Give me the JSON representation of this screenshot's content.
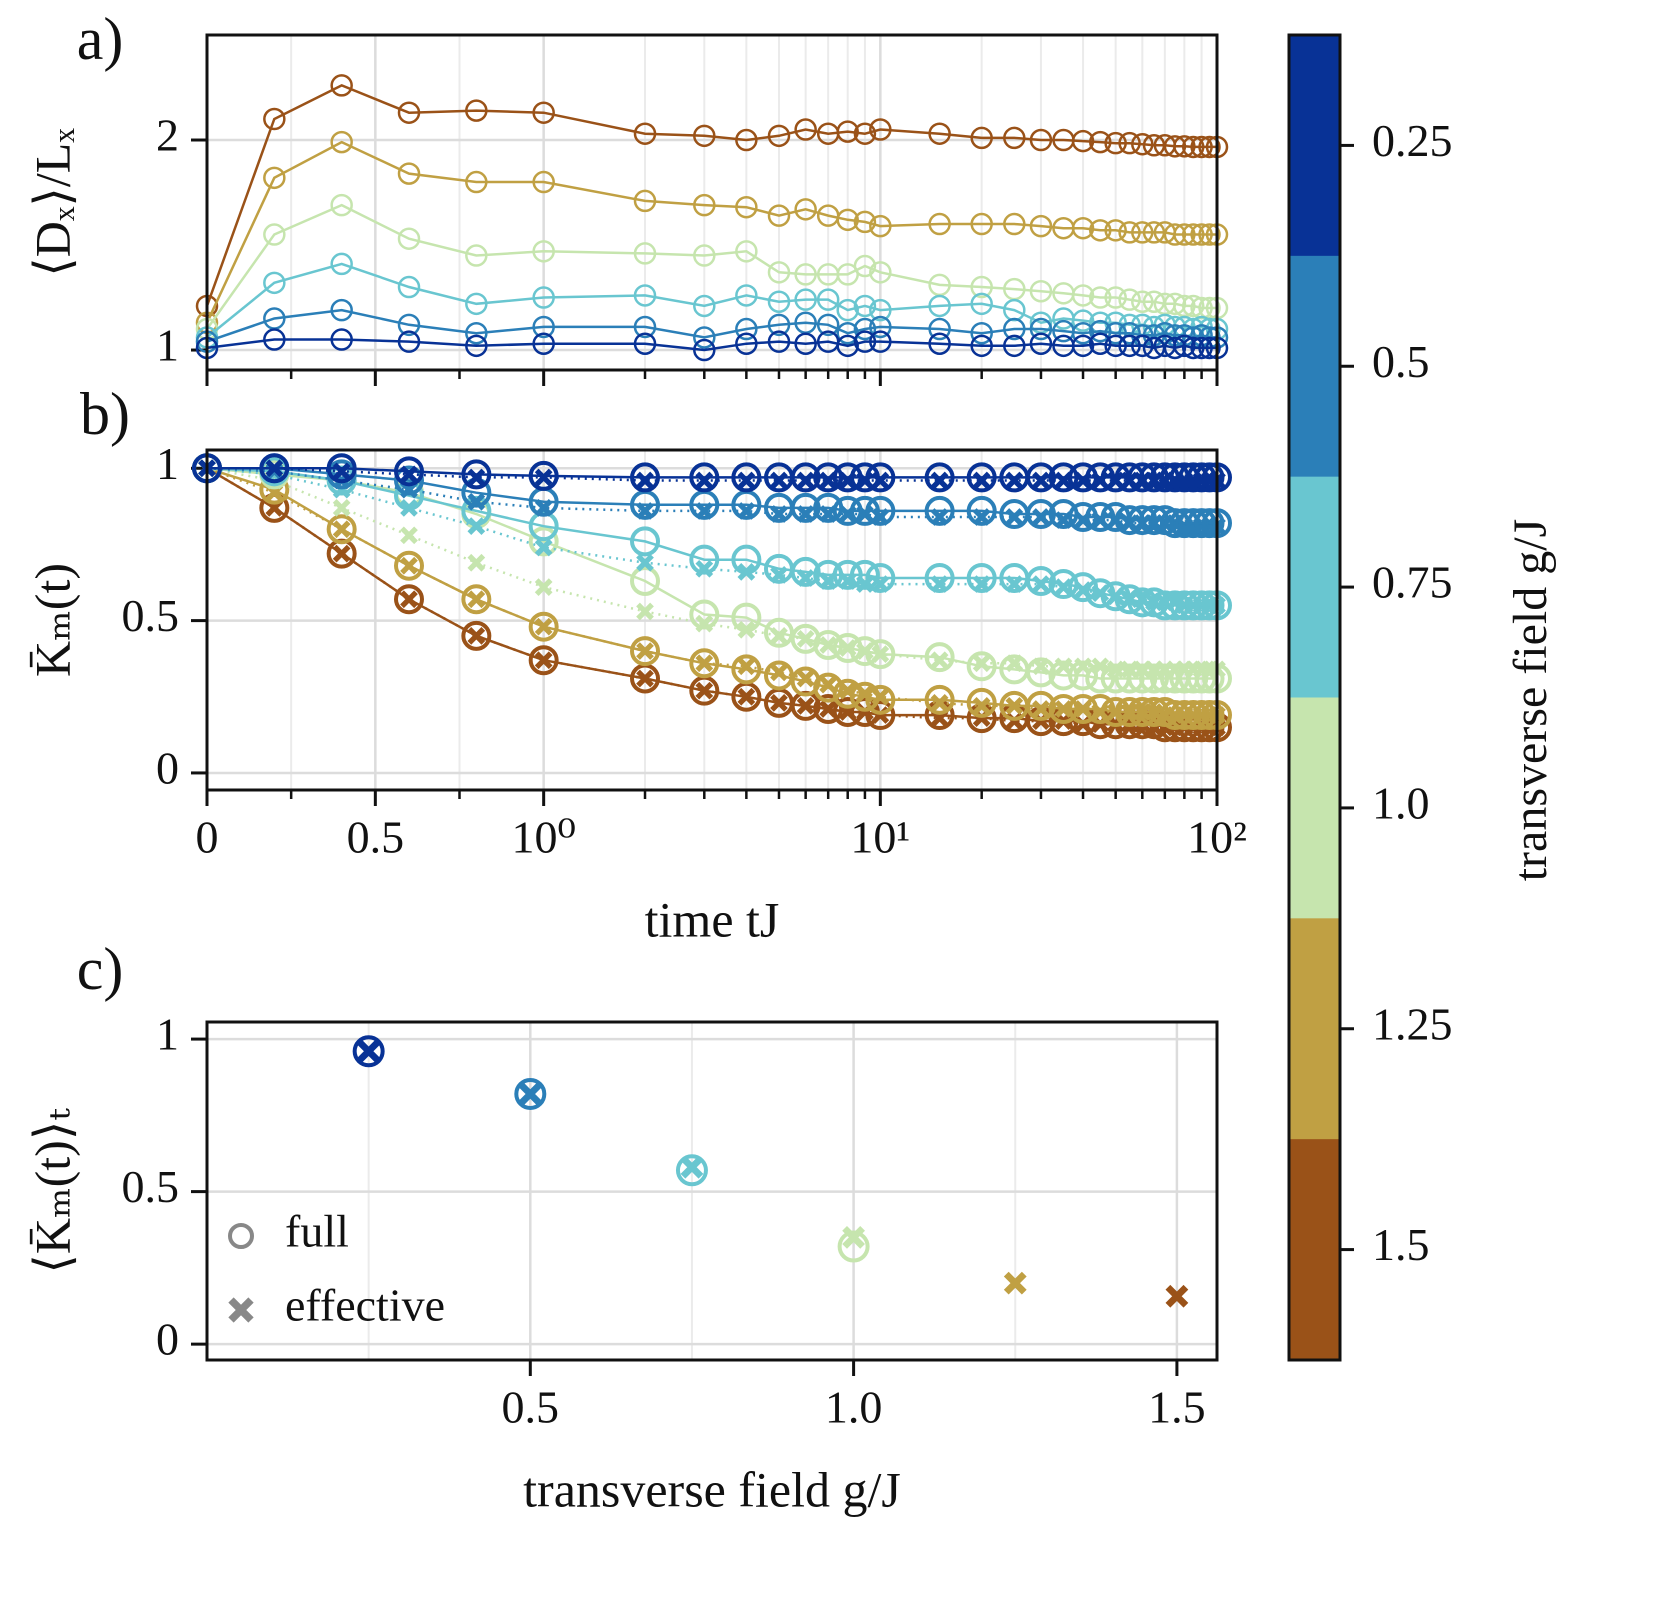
{
  "chart_data": [
    {
      "type": "line",
      "panel_label": "a)",
      "ylabel": "⟨Dₓ⟩/Lₓ",
      "xscale": "symlog",
      "linthresh": 1,
      "marker": "o",
      "linestyle": "solid",
      "x": [
        0,
        0.2,
        0.4,
        0.6,
        0.8,
        1,
        2,
        3,
        4,
        5,
        6,
        7,
        8,
        9,
        10,
        15,
        20,
        25,
        30,
        35,
        40,
        45,
        50,
        55,
        60,
        65,
        70,
        75,
        80,
        85,
        90,
        95,
        100
      ],
      "xlim": [
        0,
        100
      ],
      "xticks": [
        0,
        0.5,
        1,
        10,
        100
      ],
      "xminorticks": [
        0.25,
        0.75,
        2,
        3,
        4,
        5,
        6,
        7,
        8,
        9,
        20,
        30,
        40,
        50,
        60,
        70,
        80,
        90
      ],
      "ylim": [
        0.905,
        2.5
      ],
      "yticks": [
        1,
        2
      ],
      "grid": true,
      "series": [
        {
          "color": "#9a5218",
          "values": [
            1.21,
            2.1,
            2.26,
            2.13,
            2.14,
            2.13,
            2.03,
            2.02,
            2.0,
            2.02,
            2.05,
            2.03,
            2.04,
            2.03,
            2.05,
            2.03,
            2.01,
            2.01,
            2.0,
            2.0,
            1.995,
            1.99,
            1.985,
            1.985,
            1.98,
            1.975,
            1.975,
            1.97,
            1.97,
            1.967,
            1.967,
            1.967,
            1.967
          ]
        },
        {
          "color": "#c0a043",
          "values": [
            1.13,
            1.82,
            1.99,
            1.84,
            1.8,
            1.8,
            1.71,
            1.69,
            1.68,
            1.64,
            1.67,
            1.64,
            1.62,
            1.61,
            1.59,
            1.6,
            1.6,
            1.6,
            1.59,
            1.58,
            1.58,
            1.57,
            1.57,
            1.56,
            1.56,
            1.56,
            1.56,
            1.55,
            1.55,
            1.55,
            1.55,
            1.55,
            1.55
          ]
        },
        {
          "color": "#c6e5ae",
          "values": [
            1.1,
            1.55,
            1.69,
            1.53,
            1.45,
            1.47,
            1.46,
            1.45,
            1.47,
            1.37,
            1.36,
            1.36,
            1.36,
            1.4,
            1.37,
            1.31,
            1.3,
            1.29,
            1.28,
            1.27,
            1.26,
            1.25,
            1.25,
            1.24,
            1.23,
            1.23,
            1.22,
            1.22,
            1.21,
            1.21,
            1.2,
            1.2,
            1.2
          ]
        },
        {
          "color": "#69c6d0",
          "values": [
            1.06,
            1.32,
            1.41,
            1.3,
            1.22,
            1.25,
            1.26,
            1.21,
            1.26,
            1.23,
            1.24,
            1.24,
            1.19,
            1.21,
            1.19,
            1.21,
            1.22,
            1.19,
            1.13,
            1.15,
            1.14,
            1.13,
            1.13,
            1.12,
            1.12,
            1.11,
            1.12,
            1.11,
            1.11,
            1.1,
            1.11,
            1.1,
            1.1
          ]
        },
        {
          "color": "#2b7fb8",
          "values": [
            1.04,
            1.15,
            1.19,
            1.12,
            1.08,
            1.11,
            1.11,
            1.06,
            1.1,
            1.12,
            1.13,
            1.12,
            1.08,
            1.1,
            1.11,
            1.1,
            1.08,
            1.1,
            1.1,
            1.09,
            1.08,
            1.09,
            1.08,
            1.08,
            1.07,
            1.07,
            1.08,
            1.07,
            1.07,
            1.06,
            1.07,
            1.06,
            1.06
          ]
        },
        {
          "color": "#083296",
          "values": [
            1.01,
            1.05,
            1.05,
            1.04,
            1.02,
            1.03,
            1.03,
            1.0,
            1.03,
            1.04,
            1.03,
            1.04,
            1.02,
            1.04,
            1.04,
            1.03,
            1.02,
            1.02,
            1.03,
            1.02,
            1.02,
            1.03,
            1.02,
            1.02,
            1.02,
            1.01,
            1.02,
            1.01,
            1.02,
            1.01,
            1.01,
            1.01,
            1.01
          ]
        }
      ]
    },
    {
      "type": "line",
      "panel_label": "b)",
      "ylabel": "K̄ₘ(t)",
      "xlabel": "time tJ",
      "xscale": "symlog",
      "linthresh": 1,
      "x": [
        0,
        0.2,
        0.4,
        0.6,
        0.8,
        1,
        2,
        3,
        4,
        5,
        6,
        7,
        8,
        9,
        10,
        15,
        20,
        25,
        30,
        35,
        40,
        45,
        50,
        55,
        60,
        65,
        70,
        75,
        80,
        85,
        90,
        95,
        100
      ],
      "xlim": [
        0,
        100
      ],
      "xticks": [
        0,
        0.5,
        {
          "value": 1,
          "label": "10⁰"
        },
        {
          "value": 10,
          "label": "10¹"
        },
        {
          "value": 100,
          "label": "10²"
        }
      ],
      "xminorticks": [
        0.25,
        0.75,
        2,
        3,
        4,
        5,
        6,
        7,
        8,
        9,
        20,
        30,
        40,
        50,
        60,
        70,
        80,
        90
      ],
      "ylim": [
        -0.056,
        1.06
      ],
      "yticks": [
        0,
        0.5,
        1
      ],
      "grid": true,
      "series": [
        {
          "color": "#9a5218",
          "marker": "x",
          "linestyle": "dotted",
          "values": [
            1.0,
            0.87,
            0.72,
            0.57,
            0.45,
            0.37,
            0.31,
            0.27,
            0.25,
            0.23,
            0.22,
            0.21,
            0.2,
            0.2,
            0.19,
            0.18,
            0.18,
            0.17,
            0.17,
            0.17,
            0.16,
            0.16,
            0.16,
            0.16,
            0.16,
            0.15,
            0.15,
            0.15,
            0.15,
            0.15,
            0.15,
            0.15,
            0.15
          ]
        },
        {
          "color": "#9a5218",
          "marker": "o",
          "linestyle": "solid",
          "values": [
            1.0,
            0.87,
            0.72,
            0.57,
            0.45,
            0.37,
            0.31,
            0.27,
            0.25,
            0.23,
            0.22,
            0.21,
            0.2,
            0.2,
            0.19,
            0.19,
            0.18,
            0.18,
            0.17,
            0.17,
            0.17,
            0.16,
            0.16,
            0.16,
            0.16,
            0.16,
            0.15,
            0.15,
            0.15,
            0.15,
            0.15,
            0.15,
            0.15
          ]
        },
        {
          "color": "#c0a043",
          "marker": "x",
          "linestyle": "dotted",
          "values": [
            1.0,
            0.92,
            0.8,
            0.68,
            0.57,
            0.48,
            0.4,
            0.36,
            0.35,
            0.33,
            0.31,
            0.29,
            0.27,
            0.26,
            0.25,
            0.23,
            0.22,
            0.22,
            0.21,
            0.21,
            0.21,
            0.2,
            0.2,
            0.2,
            0.2,
            0.2,
            0.19,
            0.19,
            0.19,
            0.19,
            0.19,
            0.19,
            0.19
          ]
        },
        {
          "color": "#c0a043",
          "marker": "o",
          "linestyle": "solid",
          "values": [
            1.0,
            0.93,
            0.8,
            0.68,
            0.57,
            0.48,
            0.4,
            0.36,
            0.34,
            0.32,
            0.3,
            0.28,
            0.26,
            0.25,
            0.24,
            0.24,
            0.23,
            0.22,
            0.22,
            0.21,
            0.21,
            0.21,
            0.2,
            0.2,
            0.2,
            0.2,
            0.2,
            0.19,
            0.19,
            0.19,
            0.19,
            0.19,
            0.19
          ]
        },
        {
          "color": "#c6e5ae",
          "marker": "x",
          "linestyle": "dotted",
          "values": [
            1.0,
            0.96,
            0.87,
            0.78,
            0.69,
            0.61,
            0.53,
            0.49,
            0.47,
            0.45,
            0.44,
            0.42,
            0.41,
            0.4,
            0.39,
            0.37,
            0.36,
            0.36,
            0.35,
            0.35,
            0.35,
            0.35,
            0.34,
            0.34,
            0.34,
            0.34,
            0.34,
            0.34,
            0.34,
            0.34,
            0.34,
            0.34,
            0.34
          ]
        },
        {
          "color": "#c6e5ae",
          "marker": "o",
          "linestyle": "solid",
          "values": [
            1.0,
            0.98,
            0.96,
            0.92,
            0.85,
            0.76,
            0.63,
            0.52,
            0.51,
            0.46,
            0.44,
            0.42,
            0.41,
            0.4,
            0.39,
            0.38,
            0.35,
            0.34,
            0.33,
            0.32,
            0.32,
            0.31,
            0.31,
            0.31,
            0.31,
            0.31,
            0.31,
            0.31,
            0.31,
            0.31,
            0.31,
            0.31,
            0.31
          ]
        },
        {
          "color": "#69c6d0",
          "marker": "x",
          "linestyle": "dotted",
          "values": [
            1.0,
            0.98,
            0.93,
            0.87,
            0.81,
            0.74,
            0.69,
            0.67,
            0.66,
            0.65,
            0.64,
            0.63,
            0.63,
            0.62,
            0.62,
            0.62,
            0.62,
            0.62,
            0.62,
            0.61,
            0.6,
            0.59,
            0.58,
            0.57,
            0.57,
            0.56,
            0.56,
            0.56,
            0.55,
            0.55,
            0.55,
            0.55,
            0.55
          ]
        },
        {
          "color": "#69c6d0",
          "marker": "o",
          "linestyle": "solid",
          "values": [
            1.0,
            0.99,
            0.96,
            0.91,
            0.86,
            0.81,
            0.76,
            0.7,
            0.7,
            0.67,
            0.66,
            0.65,
            0.65,
            0.65,
            0.64,
            0.64,
            0.64,
            0.64,
            0.63,
            0.62,
            0.61,
            0.59,
            0.58,
            0.57,
            0.56,
            0.56,
            0.55,
            0.55,
            0.55,
            0.55,
            0.55,
            0.55,
            0.55
          ]
        },
        {
          "color": "#2b7fb8",
          "marker": "x",
          "linestyle": "dotted",
          "values": [
            1.0,
            0.99,
            0.96,
            0.93,
            0.89,
            0.87,
            0.86,
            0.86,
            0.86,
            0.85,
            0.85,
            0.85,
            0.85,
            0.85,
            0.84,
            0.84,
            0.84,
            0.84,
            0.84,
            0.83,
            0.83,
            0.83,
            0.83,
            0.82,
            0.82,
            0.82,
            0.82,
            0.82,
            0.81,
            0.81,
            0.81,
            0.81,
            0.81
          ]
        },
        {
          "color": "#2b7fb8",
          "marker": "o",
          "linestyle": "solid",
          "values": [
            1.0,
            1.0,
            0.98,
            0.96,
            0.92,
            0.89,
            0.88,
            0.88,
            0.88,
            0.87,
            0.87,
            0.87,
            0.86,
            0.86,
            0.86,
            0.86,
            0.86,
            0.85,
            0.85,
            0.85,
            0.84,
            0.84,
            0.84,
            0.83,
            0.83,
            0.83,
            0.83,
            0.82,
            0.82,
            0.82,
            0.82,
            0.82,
            0.82
          ]
        },
        {
          "color": "#083296",
          "marker": "x",
          "linestyle": "dotted",
          "values": [
            1.0,
            1.0,
            0.99,
            0.98,
            0.97,
            0.97,
            0.96,
            0.96,
            0.96,
            0.96,
            0.96,
            0.96,
            0.96,
            0.96,
            0.96,
            0.96,
            0.96,
            0.96,
            0.96,
            0.96,
            0.96,
            0.96,
            0.96,
            0.96,
            0.96,
            0.96,
            0.96,
            0.96,
            0.96,
            0.96,
            0.96,
            0.96,
            0.96
          ]
        },
        {
          "color": "#083296",
          "marker": "o",
          "linestyle": "solid",
          "values": [
            1.0,
            1.0,
            1.0,
            0.99,
            0.98,
            0.975,
            0.97,
            0.97,
            0.97,
            0.97,
            0.97,
            0.97,
            0.97,
            0.97,
            0.97,
            0.97,
            0.97,
            0.97,
            0.97,
            0.97,
            0.97,
            0.97,
            0.97,
            0.97,
            0.97,
            0.97,
            0.97,
            0.97,
            0.97,
            0.97,
            0.97,
            0.97,
            0.97
          ]
        }
      ]
    },
    {
      "type": "scatter",
      "panel_label": "c)",
      "ylabel": "⟨K̄ₘ(t)⟩ₜ",
      "xlabel": "transverse field g/J",
      "x": [
        0.25,
        0.5,
        0.75,
        1,
        1.25,
        1.5
      ],
      "xlim": [
        0,
        1.562
      ],
      "xticks": [
        0.5,
        {
          "value": 1,
          "label": "1.0"
        },
        1.5
      ],
      "xminorticks": [
        0.25,
        0.75,
        1.25
      ],
      "ylim": [
        -0.052,
        1.056
      ],
      "yticks": [
        0,
        0.5,
        1
      ],
      "grid": true,
      "legend": "lower left",
      "colors": [
        "#083296",
        "#2b7fb8",
        "#69c6d0",
        "#c6e5ae",
        "#c0a043",
        "#9a5218"
      ],
      "series": [
        {
          "name": "full",
          "marker": "o",
          "color": "#888888",
          "values": [
            0.96,
            0.82,
            0.57,
            0.32,
            null,
            null
          ]
        },
        {
          "name": "effective",
          "marker": "x",
          "color": "#888888",
          "values": [
            0.96,
            0.82,
            0.58,
            0.35,
            0.2,
            0.157
          ]
        }
      ]
    },
    {
      "type": "colorbar",
      "label": "transverse field g/J",
      "colors": [
        "#083296",
        "#2b7fb8",
        "#69c6d0",
        "#c6e5ae",
        "#c0a043",
        "#9a5218"
      ],
      "ylim": [
        0.125,
        1.625
      ],
      "yticks": [
        0.25,
        0.5,
        0.75,
        {
          "value": 1,
          "label": "1.0"
        },
        1.25,
        1.5
      ]
    }
  ]
}
